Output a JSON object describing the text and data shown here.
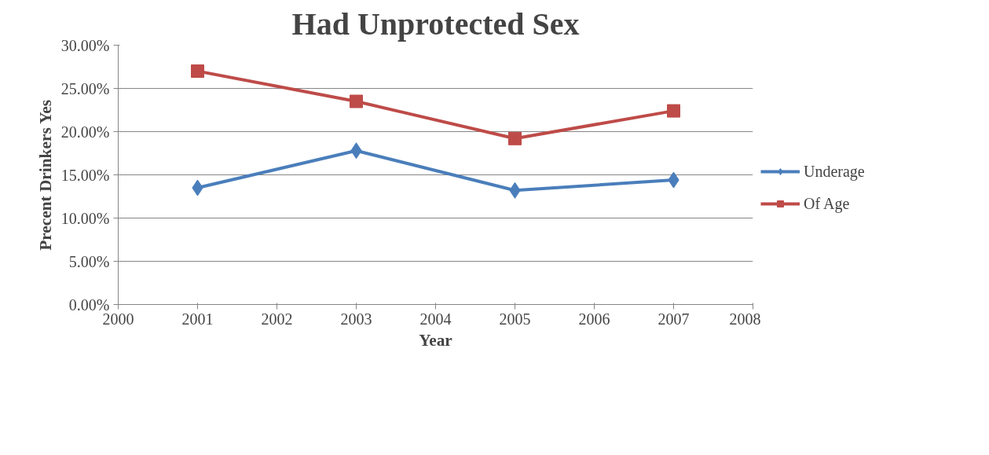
{
  "chart_data": {
    "type": "line",
    "title": "Had Unprotected Sex",
    "xlabel": "Year",
    "ylabel": "Precent Drinkers Yes",
    "x": [
      2001,
      2003,
      2005,
      2007
    ],
    "series": [
      {
        "name": "Underage",
        "color": "#4a7ebb",
        "marker": "diamond",
        "values": [
          13.5,
          17.8,
          13.2,
          14.4
        ]
      },
      {
        "name": "Of Age",
        "color": "#be4b48",
        "marker": "square",
        "values": [
          27.0,
          23.5,
          19.2,
          22.4
        ]
      }
    ],
    "xlim": [
      2000,
      2008
    ],
    "xticks": [
      2000,
      2001,
      2002,
      2003,
      2004,
      2005,
      2006,
      2007,
      2008
    ],
    "ylim": [
      0,
      30
    ],
    "yticks": [
      {
        "value": 0,
        "label": "0.00%"
      },
      {
        "value": 5,
        "label": "5.00%"
      },
      {
        "value": 10,
        "label": "10.00%"
      },
      {
        "value": 15,
        "label": "15.00%"
      },
      {
        "value": 20,
        "label": "20.00%"
      },
      {
        "value": 25,
        "label": "25.00%"
      },
      {
        "value": 30,
        "label": "30.00%"
      }
    ],
    "grid": "y",
    "legend": "right",
    "line_style": "solid"
  }
}
